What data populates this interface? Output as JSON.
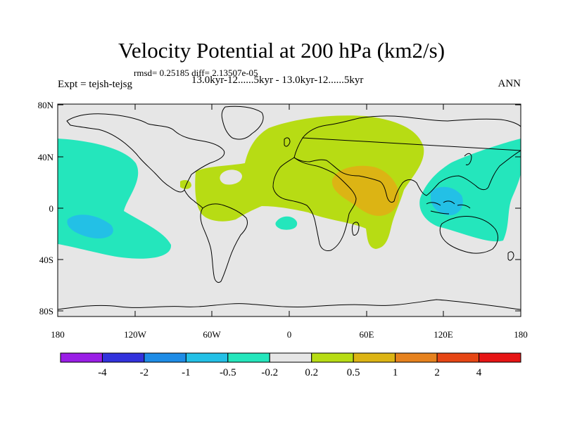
{
  "title": "Velocity Potential at 200 hPa (km2/s)",
  "stats": "rmsd= 0.25185 diff= 2.13507e-05",
  "experiment": "Expt = tejsh-tejsg",
  "cases": "13.0kyr-12......5kyr - 13.0kyr-12......5kyr",
  "season": "ANN",
  "lat_labels": [
    "80N",
    "40N",
    "0",
    "40S",
    "80S"
  ],
  "lon_labels": [
    "180",
    "120W",
    "60W",
    "0",
    "60E",
    "120E",
    "180"
  ],
  "colorbar": {
    "labels": [
      "-4",
      "-2",
      "-1",
      "-0.5",
      "-0.2",
      "0.2",
      "0.5",
      "1",
      "2",
      "4"
    ],
    "colors": [
      "#9a1ee6",
      "#3232dc",
      "#1e8ce6",
      "#23c0e6",
      "#24e6bc",
      "#e6e6e6",
      "#b7dc14",
      "#dcb414",
      "#e6821e",
      "#e64614",
      "#e61414"
    ]
  },
  "colors": {
    "neutral": "#e6e6e6",
    "negative_weak": "#24e6bc",
    "negative": "#23c0e6",
    "positive_weak": "#b7dc14",
    "positive": "#dcb414"
  }
}
